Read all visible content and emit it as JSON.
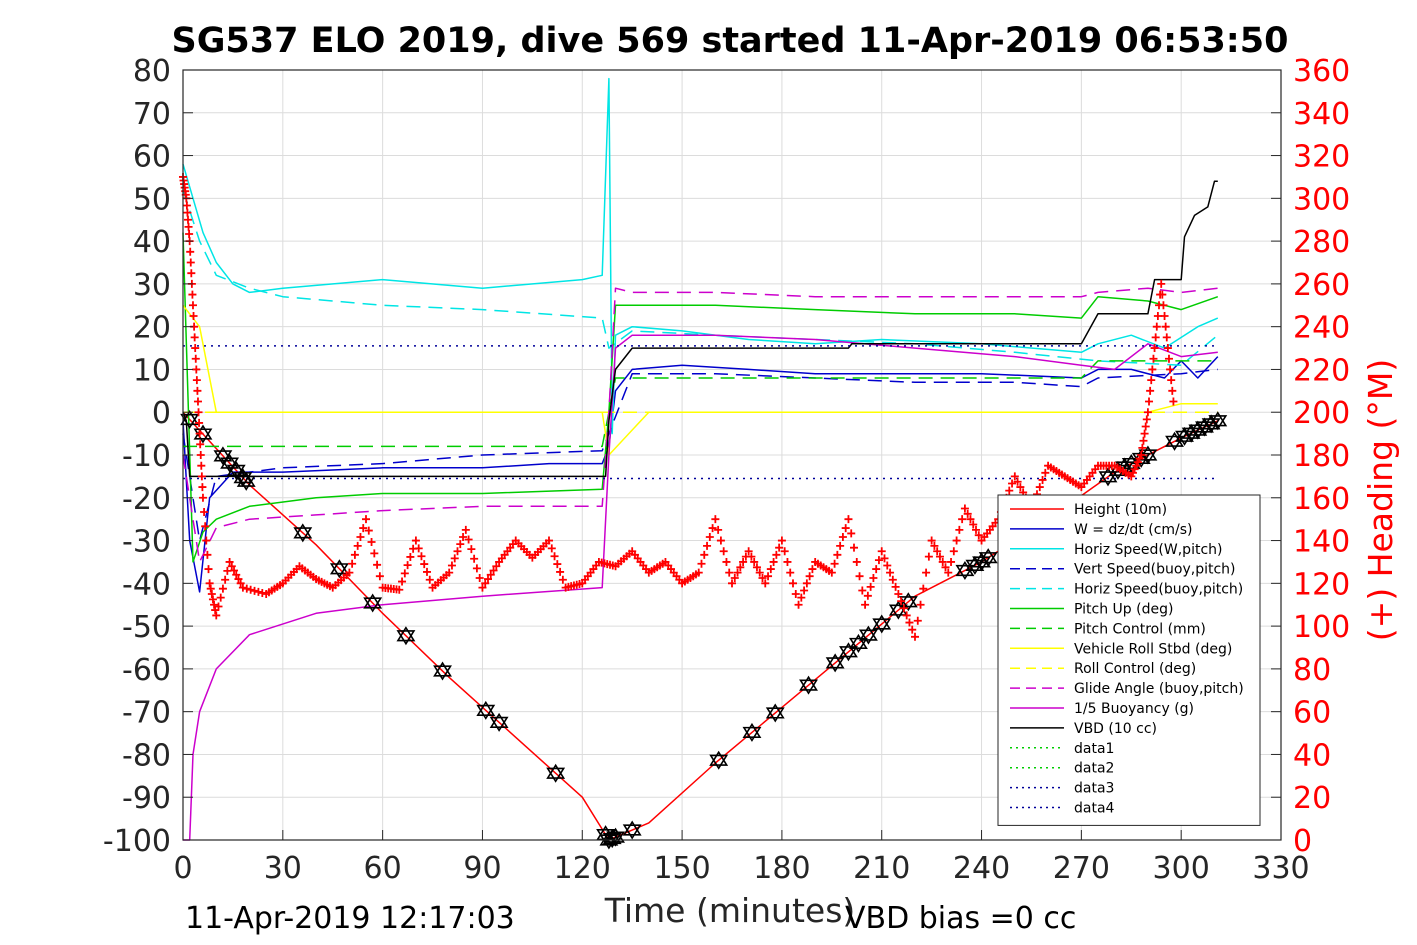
{
  "figure": {
    "title": "SG537 ELO 2019, dive 569 started 11-Apr-2019 06:53:50",
    "footer_time": "11-Apr-2019 12:17:03",
    "footer_bias": "VBD bias =0 cc"
  },
  "colors": {
    "red": "#ff0000",
    "blue": "#0000cc",
    "cyan": "#00e5e5",
    "green": "#00cc00",
    "yellow": "#ffff00",
    "magenta": "#cc00cc",
    "black": "#000000",
    "grid": "#dcdcdc"
  },
  "chart_data": {
    "type": "line",
    "title": "SG537 ELO 2019, dive 569 started 11-Apr-2019 06:53:50",
    "xlabel": "Time (minutes)",
    "ylabel_right": "(+) Heading (°M)",
    "xlim": [
      0,
      330
    ],
    "ylim": [
      -100,
      80
    ],
    "ylim_right": [
      0,
      360
    ],
    "xticks": [
      0,
      30,
      60,
      90,
      120,
      150,
      180,
      210,
      240,
      270,
      300,
      330
    ],
    "yticks": [
      -100,
      -90,
      -80,
      -70,
      -60,
      -50,
      -40,
      -30,
      -20,
      -10,
      0,
      10,
      20,
      30,
      40,
      50,
      60,
      70,
      80
    ],
    "yticks_right": [
      0,
      20,
      40,
      60,
      80,
      100,
      120,
      140,
      160,
      180,
      200,
      220,
      240,
      260,
      280,
      300,
      320,
      340,
      360
    ],
    "grid": true,
    "legend_position": "lower-right",
    "series": [
      {
        "name": "Height (10m)",
        "color": "#ff0000",
        "dash": "solid",
        "x": [
          0,
          20,
          40,
          60,
          80,
          100,
          120,
          128,
          140,
          160,
          180,
          200,
          220,
          240,
          260,
          280,
          300,
          311
        ],
        "y": [
          0,
          -17,
          -31,
          -47,
          -62,
          -76,
          -90,
          -100,
          -96,
          -82,
          -69,
          -56,
          -43,
          -35,
          -25,
          -14,
          -6,
          -2
        ]
      },
      {
        "name": "W = dz/dt (cm/s)",
        "color": "#0000cc",
        "dash": "solid",
        "x": [
          0,
          2,
          5,
          8,
          15,
          30,
          60,
          90,
          110,
          126,
          128,
          130,
          135,
          150,
          170,
          190,
          200,
          210,
          240,
          270,
          275,
          285,
          295,
          300,
          305,
          311
        ],
        "y": [
          -2,
          -30,
          -42,
          -20,
          -14,
          -14,
          -13,
          -13,
          -12,
          -12,
          -8,
          5,
          10,
          11,
          10,
          9,
          9,
          9,
          9,
          8,
          10,
          10,
          8,
          12,
          8,
          13
        ]
      },
      {
        "name": "Horiz Speed(W,pitch)",
        "color": "#00e5e5",
        "dash": "solid",
        "x": [
          0,
          3,
          6,
          10,
          15,
          20,
          30,
          60,
          90,
          120,
          126,
          128,
          129,
          130,
          135,
          150,
          170,
          190,
          210,
          240,
          270,
          275,
          285,
          295,
          305,
          311
        ],
        "y": [
          58,
          50,
          42,
          35,
          30,
          28,
          29,
          31,
          29,
          31,
          32,
          78,
          -5,
          18,
          20,
          19,
          17,
          16,
          17,
          16,
          14,
          16,
          18,
          15,
          20,
          22
        ]
      },
      {
        "name": "Vert Speed(buoy,pitch)",
        "color": "#0000cc",
        "dash": "dash",
        "x": [
          0,
          5,
          10,
          30,
          60,
          90,
          126,
          128,
          135,
          160,
          190,
          220,
          250,
          270,
          275,
          300,
          311
        ],
        "y": [
          -5,
          -30,
          -15,
          -13,
          -12,
          -10,
          -9,
          -5,
          9,
          9,
          8,
          7,
          7,
          6,
          8,
          9,
          10
        ]
      },
      {
        "name": "Horiz Speed(buoy,pitch)",
        "color": "#00e5e5",
        "dash": "dash",
        "x": [
          0,
          5,
          10,
          20,
          30,
          60,
          90,
          126,
          128,
          135,
          160,
          190,
          220,
          250,
          275,
          300,
          311
        ],
        "y": [
          52,
          40,
          32,
          29,
          27,
          25,
          24,
          22,
          15,
          19,
          18,
          17,
          16,
          14,
          12,
          11,
          18
        ]
      },
      {
        "name": "Pitch Up (deg)",
        "color": "#00cc00",
        "dash": "solid",
        "x": [
          0,
          3,
          6,
          10,
          20,
          40,
          60,
          90,
          126,
          128,
          130,
          135,
          160,
          190,
          220,
          250,
          270,
          275,
          290,
          300,
          311
        ],
        "y": [
          42,
          -35,
          -28,
          -25,
          -22,
          -20,
          -19,
          -19,
          -18,
          0,
          25,
          25,
          25,
          24,
          23,
          23,
          22,
          27,
          26,
          24,
          27
        ]
      },
      {
        "name": "Pitch Control (mm)",
        "color": "#00cc00",
        "dash": "dash",
        "x": [
          0,
          3,
          5,
          60,
          126,
          128,
          130,
          200,
          270,
          275,
          311
        ],
        "y": [
          -8,
          -8,
          -8,
          -8,
          -8,
          0,
          8,
          8,
          8,
          12,
          12
        ]
      },
      {
        "name": "Vehicle Roll Stbd (deg)",
        "color": "#ffff00",
        "dash": "solid",
        "x": [
          0,
          5,
          10,
          30,
          60,
          90,
          126,
          128,
          140,
          160,
          200,
          240,
          270,
          280,
          290,
          300,
          311
        ],
        "y": [
          25,
          20,
          0,
          0,
          0,
          0,
          0,
          -10,
          0,
          0,
          0,
          0,
          0,
          0,
          0,
          2,
          2
        ]
      },
      {
        "name": "Roll Control (deg)",
        "color": "#ffff00",
        "dash": "dash",
        "x": [
          0,
          60,
          126,
          128,
          200,
          270,
          311
        ],
        "y": [
          0,
          0,
          0,
          0,
          0,
          0,
          0
        ]
      },
      {
        "name": "Glide Angle (buoy,pitch)",
        "color": "#cc00cc",
        "dash": "dash",
        "x": [
          0,
          5,
          10,
          20,
          40,
          60,
          90,
          126,
          128,
          130,
          135,
          160,
          190,
          220,
          250,
          270,
          275,
          290,
          300,
          311
        ],
        "y": [
          -10,
          -35,
          -27,
          -25,
          -24,
          -23,
          -22,
          -22,
          0,
          29,
          28,
          28,
          27,
          27,
          27,
          27,
          28,
          29,
          28,
          29
        ]
      },
      {
        "name": "1/5 Buoyancy (g)",
        "color": "#cc00cc",
        "dash": "solid",
        "x": [
          0,
          2,
          3,
          5,
          10,
          20,
          40,
          60,
          90,
          126,
          128,
          130,
          135,
          160,
          190,
          220,
          250,
          270,
          280,
          290,
          300,
          311
        ],
        "y": [
          -100,
          -100,
          -80,
          -70,
          -60,
          -52,
          -47,
          -45,
          -43,
          -41,
          -10,
          15,
          18,
          18,
          17,
          15,
          13,
          11,
          10,
          16,
          13,
          14
        ]
      },
      {
        "name": "VBD (10 cc)",
        "color": "#000000",
        "dash": "solid",
        "x": [
          0,
          1,
          2,
          5,
          10,
          60,
          126,
          127,
          128,
          130,
          135,
          200,
          201,
          270,
          275,
          285,
          290,
          292,
          300,
          301,
          304,
          308,
          310,
          311
        ],
        "y": [
          0,
          -2,
          -15,
          -15,
          -15,
          -15,
          -15,
          -15,
          -2,
          10,
          15,
          15,
          16,
          16,
          23,
          23,
          23,
          31,
          31,
          41,
          46,
          48,
          54,
          54
        ]
      },
      {
        "name": "data1",
        "color": "#00cc00",
        "dash": "dot",
        "x": [],
        "y": []
      },
      {
        "name": "data2",
        "color": "#00cc00",
        "dash": "dot",
        "x": [],
        "y": []
      },
      {
        "name": "data3",
        "color": "#000099",
        "dash": "dot",
        "x": [
          0,
          311
        ],
        "y": [
          15.5,
          15.5
        ]
      },
      {
        "name": "data4",
        "color": "#000099",
        "dash": "dot",
        "x": [
          0,
          311
        ],
        "y": [
          -15.5,
          -15.5
        ]
      }
    ],
    "heading_series": {
      "name": "Heading (°M)",
      "color": "#ff0000",
      "marker": "+",
      "axis": "right",
      "x": [
        0,
        1,
        2,
        3,
        4,
        5,
        6,
        8,
        10,
        14,
        18,
        25,
        30,
        35,
        40,
        45,
        50,
        55,
        60,
        65,
        70,
        75,
        80,
        85,
        90,
        95,
        100,
        105,
        110,
        115,
        120,
        125,
        130,
        135,
        140,
        145,
        150,
        155,
        160,
        165,
        170,
        175,
        180,
        185,
        190,
        195,
        200,
        205,
        210,
        215,
        220,
        225,
        230,
        235,
        240,
        245,
        250,
        255,
        260,
        265,
        270,
        275,
        280,
        285,
        288,
        290,
        292,
        294,
        296,
        298
      ],
      "y": [
        310,
        300,
        280,
        250,
        220,
        190,
        160,
        120,
        105,
        130,
        118,
        115,
        120,
        128,
        122,
        118,
        125,
        150,
        118,
        117,
        140,
        118,
        125,
        145,
        118,
        130,
        140,
        132,
        140,
        118,
        120,
        130,
        128,
        135,
        125,
        130,
        120,
        125,
        150,
        120,
        135,
        120,
        140,
        110,
        130,
        125,
        150,
        110,
        135,
        115,
        95,
        140,
        125,
        155,
        140,
        150,
        170,
        155,
        175,
        170,
        165,
        175,
        175,
        170,
        180,
        200,
        230,
        260,
        230,
        200
      ]
    },
    "sample_markers": {
      "series": "Height (10m)",
      "x": [
        2,
        6,
        12,
        14,
        16,
        18,
        19,
        36,
        47,
        57,
        67,
        78,
        91,
        95,
        112,
        127,
        128,
        129,
        130,
        135,
        161,
        171,
        178,
        188,
        196,
        200,
        203,
        206,
        210,
        215,
        218,
        235,
        238,
        240,
        242,
        278,
        281,
        283,
        285,
        288,
        290,
        298,
        301,
        303,
        305,
        307,
        309,
        311
      ]
    }
  }
}
